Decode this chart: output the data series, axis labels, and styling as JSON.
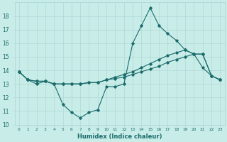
{
  "xlabel": "Humidex (Indice chaleur)",
  "background_color": "#c8ece8",
  "line_color": "#1a6b6b",
  "grid_color": "#b0d8d4",
  "x": [
    0,
    1,
    2,
    3,
    4,
    5,
    6,
    7,
    8,
    9,
    10,
    11,
    12,
    13,
    14,
    15,
    16,
    17,
    18,
    19,
    20,
    21,
    22,
    23
  ],
  "line1": [
    13.9,
    13.3,
    13.0,
    13.2,
    13.0,
    11.5,
    10.9,
    10.5,
    10.9,
    11.1,
    12.8,
    12.8,
    13.0,
    16.0,
    17.3,
    18.6,
    17.3,
    16.7,
    16.2,
    15.5,
    15.2,
    14.2,
    13.6,
    13.3
  ],
  "line2": [
    13.9,
    13.3,
    13.2,
    13.2,
    13.0,
    13.0,
    13.0,
    13.0,
    13.1,
    13.1,
    13.3,
    13.4,
    13.5,
    13.7,
    13.9,
    14.1,
    14.3,
    14.6,
    14.8,
    15.0,
    15.2,
    15.2,
    13.6,
    13.3
  ],
  "line3": [
    13.9,
    13.3,
    13.2,
    13.2,
    13.0,
    13.0,
    13.0,
    13.0,
    13.1,
    13.1,
    13.3,
    13.5,
    13.7,
    13.9,
    14.2,
    14.5,
    14.8,
    15.1,
    15.3,
    15.5,
    15.2,
    15.2,
    13.6,
    13.3
  ],
  "ylim": [
    10,
    19
  ],
  "xlim": [
    -0.5,
    23.5
  ],
  "yticks": [
    10,
    11,
    12,
    13,
    14,
    15,
    16,
    17,
    18
  ],
  "xtick_labels": [
    "0",
    "1",
    "2",
    "3",
    "4",
    "5",
    "6",
    "7",
    "8",
    "9",
    "10",
    "11",
    "12",
    "13",
    "14",
    "15",
    "16",
    "17",
    "18",
    "19",
    "20",
    "21",
    "22",
    "23"
  ]
}
